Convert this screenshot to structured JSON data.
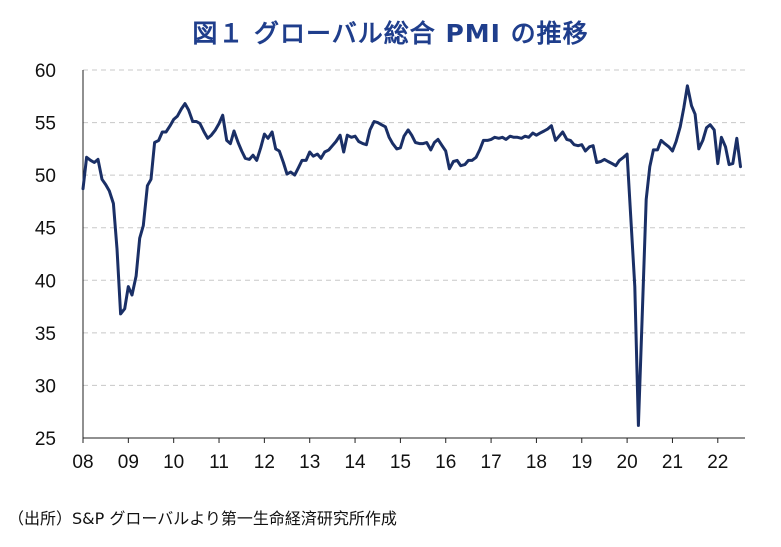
{
  "chart_data": {
    "type": "line",
    "title": "図１ グローバル総合 PMI の推移",
    "xlabel": "",
    "ylabel": "",
    "ylim": [
      25,
      60
    ],
    "yticks": [
      60,
      55,
      50,
      45,
      40,
      35,
      30,
      25
    ],
    "xlim": [
      2008.0,
      2022.6
    ],
    "xticks": [
      "08",
      "09",
      "10",
      "11",
      "12",
      "13",
      "14",
      "15",
      "16",
      "17",
      "18",
      "19",
      "20",
      "21",
      "22"
    ],
    "grid": "horizontal-dashed",
    "series": [
      {
        "name": "グローバル総合PMI",
        "color": "#1a2f66",
        "points": [
          [
            2008.0,
            48.7
          ],
          [
            2008.08,
            51.7
          ],
          [
            2008.17,
            51.4
          ],
          [
            2008.25,
            51.2
          ],
          [
            2008.33,
            51.5
          ],
          [
            2008.42,
            49.6
          ],
          [
            2008.5,
            49.1
          ],
          [
            2008.58,
            48.5
          ],
          [
            2008.67,
            47.3
          ],
          [
            2008.75,
            43.0
          ],
          [
            2008.83,
            36.8
          ],
          [
            2008.92,
            37.3
          ],
          [
            2009.0,
            39.4
          ],
          [
            2009.08,
            38.6
          ],
          [
            2009.17,
            40.4
          ],
          [
            2009.25,
            44.0
          ],
          [
            2009.33,
            45.2
          ],
          [
            2009.42,
            49.0
          ],
          [
            2009.5,
            49.6
          ],
          [
            2009.58,
            53.1
          ],
          [
            2009.67,
            53.3
          ],
          [
            2009.75,
            54.1
          ],
          [
            2009.83,
            54.1
          ],
          [
            2009.92,
            54.7
          ],
          [
            2010.0,
            55.3
          ],
          [
            2010.08,
            55.6
          ],
          [
            2010.17,
            56.3
          ],
          [
            2010.25,
            56.8
          ],
          [
            2010.33,
            56.2
          ],
          [
            2010.42,
            55.1
          ],
          [
            2010.5,
            55.1
          ],
          [
            2010.58,
            54.9
          ],
          [
            2010.67,
            54.1
          ],
          [
            2010.75,
            53.5
          ],
          [
            2010.83,
            53.8
          ],
          [
            2010.92,
            54.3
          ],
          [
            2011.0,
            54.9
          ],
          [
            2011.08,
            55.7
          ],
          [
            2011.17,
            53.3
          ],
          [
            2011.25,
            53.0
          ],
          [
            2011.33,
            54.2
          ],
          [
            2011.42,
            53.1
          ],
          [
            2011.5,
            52.3
          ],
          [
            2011.58,
            51.6
          ],
          [
            2011.67,
            51.5
          ],
          [
            2011.75,
            51.9
          ],
          [
            2011.83,
            51.4
          ],
          [
            2011.92,
            52.6
          ],
          [
            2012.0,
            53.9
          ],
          [
            2012.08,
            53.5
          ],
          [
            2012.17,
            54.1
          ],
          [
            2012.25,
            52.5
          ],
          [
            2012.33,
            52.3
          ],
          [
            2012.42,
            51.2
          ],
          [
            2012.5,
            50.1
          ],
          [
            2012.58,
            50.3
          ],
          [
            2012.67,
            50.0
          ],
          [
            2012.75,
            50.7
          ],
          [
            2012.83,
            51.4
          ],
          [
            2012.92,
            51.4
          ],
          [
            2013.0,
            52.2
          ],
          [
            2013.08,
            51.8
          ],
          [
            2013.17,
            52.0
          ],
          [
            2013.25,
            51.6
          ],
          [
            2013.33,
            52.2
          ],
          [
            2013.42,
            52.4
          ],
          [
            2013.5,
            52.8
          ],
          [
            2013.58,
            53.2
          ],
          [
            2013.67,
            53.8
          ],
          [
            2013.75,
            52.2
          ],
          [
            2013.83,
            53.8
          ],
          [
            2013.92,
            53.6
          ],
          [
            2014.0,
            53.7
          ],
          [
            2014.08,
            53.2
          ],
          [
            2014.17,
            53.0
          ],
          [
            2014.25,
            52.9
          ],
          [
            2014.33,
            54.3
          ],
          [
            2014.42,
            55.1
          ],
          [
            2014.5,
            55.0
          ],
          [
            2014.58,
            54.8
          ],
          [
            2014.67,
            54.6
          ],
          [
            2014.75,
            53.6
          ],
          [
            2014.83,
            53.0
          ],
          [
            2014.92,
            52.5
          ],
          [
            2015.0,
            52.6
          ],
          [
            2015.08,
            53.7
          ],
          [
            2015.17,
            54.3
          ],
          [
            2015.25,
            53.8
          ],
          [
            2015.33,
            53.1
          ],
          [
            2015.42,
            53.0
          ],
          [
            2015.5,
            53.0
          ],
          [
            2015.58,
            53.1
          ],
          [
            2015.67,
            52.4
          ],
          [
            2015.75,
            53.1
          ],
          [
            2015.83,
            53.4
          ],
          [
            2015.92,
            52.8
          ],
          [
            2016.0,
            52.3
          ],
          [
            2016.08,
            50.6
          ],
          [
            2016.17,
            51.3
          ],
          [
            2016.25,
            51.4
          ],
          [
            2016.33,
            50.9
          ],
          [
            2016.42,
            51.0
          ],
          [
            2016.5,
            51.4
          ],
          [
            2016.58,
            51.4
          ],
          [
            2016.67,
            51.7
          ],
          [
            2016.75,
            52.4
          ],
          [
            2016.83,
            53.3
          ],
          [
            2016.92,
            53.3
          ],
          [
            2017.0,
            53.4
          ],
          [
            2017.08,
            53.6
          ],
          [
            2017.17,
            53.5
          ],
          [
            2017.25,
            53.6
          ],
          [
            2017.33,
            53.4
          ],
          [
            2017.42,
            53.7
          ],
          [
            2017.5,
            53.6
          ],
          [
            2017.58,
            53.6
          ],
          [
            2017.67,
            53.5
          ],
          [
            2017.75,
            53.7
          ],
          [
            2017.83,
            53.6
          ],
          [
            2017.92,
            54.0
          ],
          [
            2018.0,
            53.8
          ],
          [
            2018.08,
            54.0
          ],
          [
            2018.17,
            54.2
          ],
          [
            2018.25,
            54.4
          ],
          [
            2018.33,
            54.7
          ],
          [
            2018.42,
            53.3
          ],
          [
            2018.5,
            53.7
          ],
          [
            2018.58,
            54.1
          ],
          [
            2018.67,
            53.4
          ],
          [
            2018.75,
            53.3
          ],
          [
            2018.83,
            52.9
          ],
          [
            2018.92,
            52.8
          ],
          [
            2019.0,
            52.9
          ],
          [
            2019.08,
            52.3
          ],
          [
            2019.17,
            52.7
          ],
          [
            2019.25,
            52.8
          ],
          [
            2019.33,
            51.2
          ],
          [
            2019.42,
            51.3
          ],
          [
            2019.5,
            51.5
          ],
          [
            2019.58,
            51.3
          ],
          [
            2019.67,
            51.1
          ],
          [
            2019.75,
            50.9
          ],
          [
            2019.83,
            51.4
          ],
          [
            2019.92,
            51.7
          ],
          [
            2020.0,
            52.0
          ],
          [
            2020.08,
            46.1
          ],
          [
            2020.17,
            39.4
          ],
          [
            2020.25,
            26.2
          ],
          [
            2020.33,
            36.3
          ],
          [
            2020.42,
            47.7
          ],
          [
            2020.5,
            50.8
          ],
          [
            2020.58,
            52.4
          ],
          [
            2020.67,
            52.4
          ],
          [
            2020.75,
            53.3
          ],
          [
            2020.83,
            53.0
          ],
          [
            2020.92,
            52.7
          ],
          [
            2021.0,
            52.3
          ],
          [
            2021.08,
            53.2
          ],
          [
            2021.17,
            54.6
          ],
          [
            2021.25,
            56.4
          ],
          [
            2021.33,
            58.5
          ],
          [
            2021.42,
            56.6
          ],
          [
            2021.5,
            55.8
          ],
          [
            2021.58,
            52.5
          ],
          [
            2021.67,
            53.3
          ],
          [
            2021.75,
            54.5
          ],
          [
            2021.83,
            54.8
          ],
          [
            2021.92,
            54.3
          ],
          [
            2022.0,
            51.1
          ],
          [
            2022.08,
            53.6
          ],
          [
            2022.17,
            52.7
          ],
          [
            2022.25,
            51.0
          ],
          [
            2022.33,
            51.1
          ],
          [
            2022.42,
            53.5
          ],
          [
            2022.5,
            50.8
          ]
        ]
      }
    ]
  },
  "source_note": "（出所）S&P グローバルより第一生命経済研究所作成"
}
